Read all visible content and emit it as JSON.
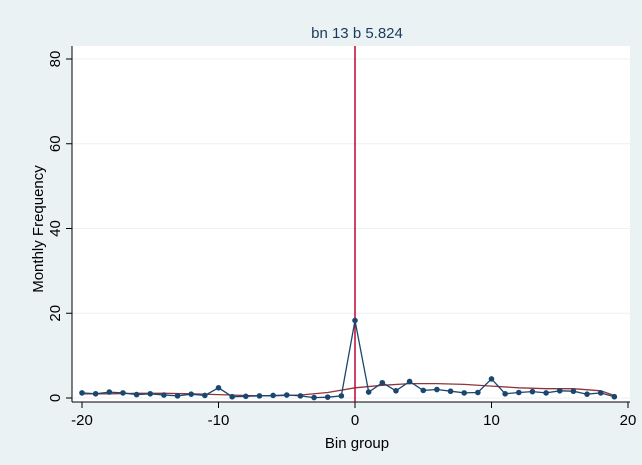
{
  "chart_data": {
    "type": "line",
    "title": "bn 13 b 5.824",
    "xlabel": "Bin group",
    "ylabel": "Monthly Frequency",
    "xlim": [
      -20,
      20
    ],
    "ylim": [
      0,
      80
    ],
    "xticks": [
      -20,
      -10,
      0,
      10,
      20
    ],
    "yticks": [
      0,
      20,
      40,
      60,
      80
    ],
    "grid": true,
    "legend": "none",
    "colors": {
      "background": "#eaf2f3",
      "plot_area": "#ffffff",
      "series": "#1a476f",
      "fit": "#90353b",
      "cutoff": "#c10534"
    },
    "cutoff_x": 0,
    "series": [
      {
        "x": [
          -20,
          -19,
          -18,
          -17,
          -16,
          -15,
          -14,
          -13,
          -12,
          -11,
          -10,
          -9,
          -8,
          -7,
          -6,
          -5,
          -4,
          -3,
          -2,
          -1,
          0,
          1,
          2,
          3,
          4,
          5,
          6,
          7,
          8,
          9,
          10,
          11,
          12,
          13,
          14,
          15,
          16,
          17,
          18,
          19
        ],
        "values": [
          1.2,
          1.0,
          1.4,
          1.2,
          0.8,
          1.0,
          0.7,
          0.5,
          0.9,
          0.6,
          2.4,
          0.3,
          0.4,
          0.5,
          0.6,
          0.7,
          0.5,
          0.1,
          0.2,
          0.5,
          18.3,
          1.4,
          3.6,
          1.7,
          3.9,
          1.8,
          2.0,
          1.6,
          1.2,
          1.3,
          4.5,
          1.0,
          1.3,
          1.5,
          1.2,
          1.7,
          1.6,
          0.9,
          1.2,
          0.3
        ]
      },
      {
        "x": [
          -20,
          -18,
          -16,
          -14,
          -12,
          -10,
          -8,
          -6,
          -4,
          -2,
          0,
          2,
          4,
          6,
          8,
          10,
          12,
          14,
          16,
          18,
          19
        ],
        "values": [
          1.0,
          1.0,
          1.1,
          1.1,
          1.0,
          0.8,
          0.6,
          0.5,
          0.7,
          1.3,
          2.4,
          3.0,
          3.4,
          3.4,
          3.2,
          2.8,
          2.4,
          2.2,
          2.2,
          1.7,
          0.6
        ]
      }
    ]
  }
}
